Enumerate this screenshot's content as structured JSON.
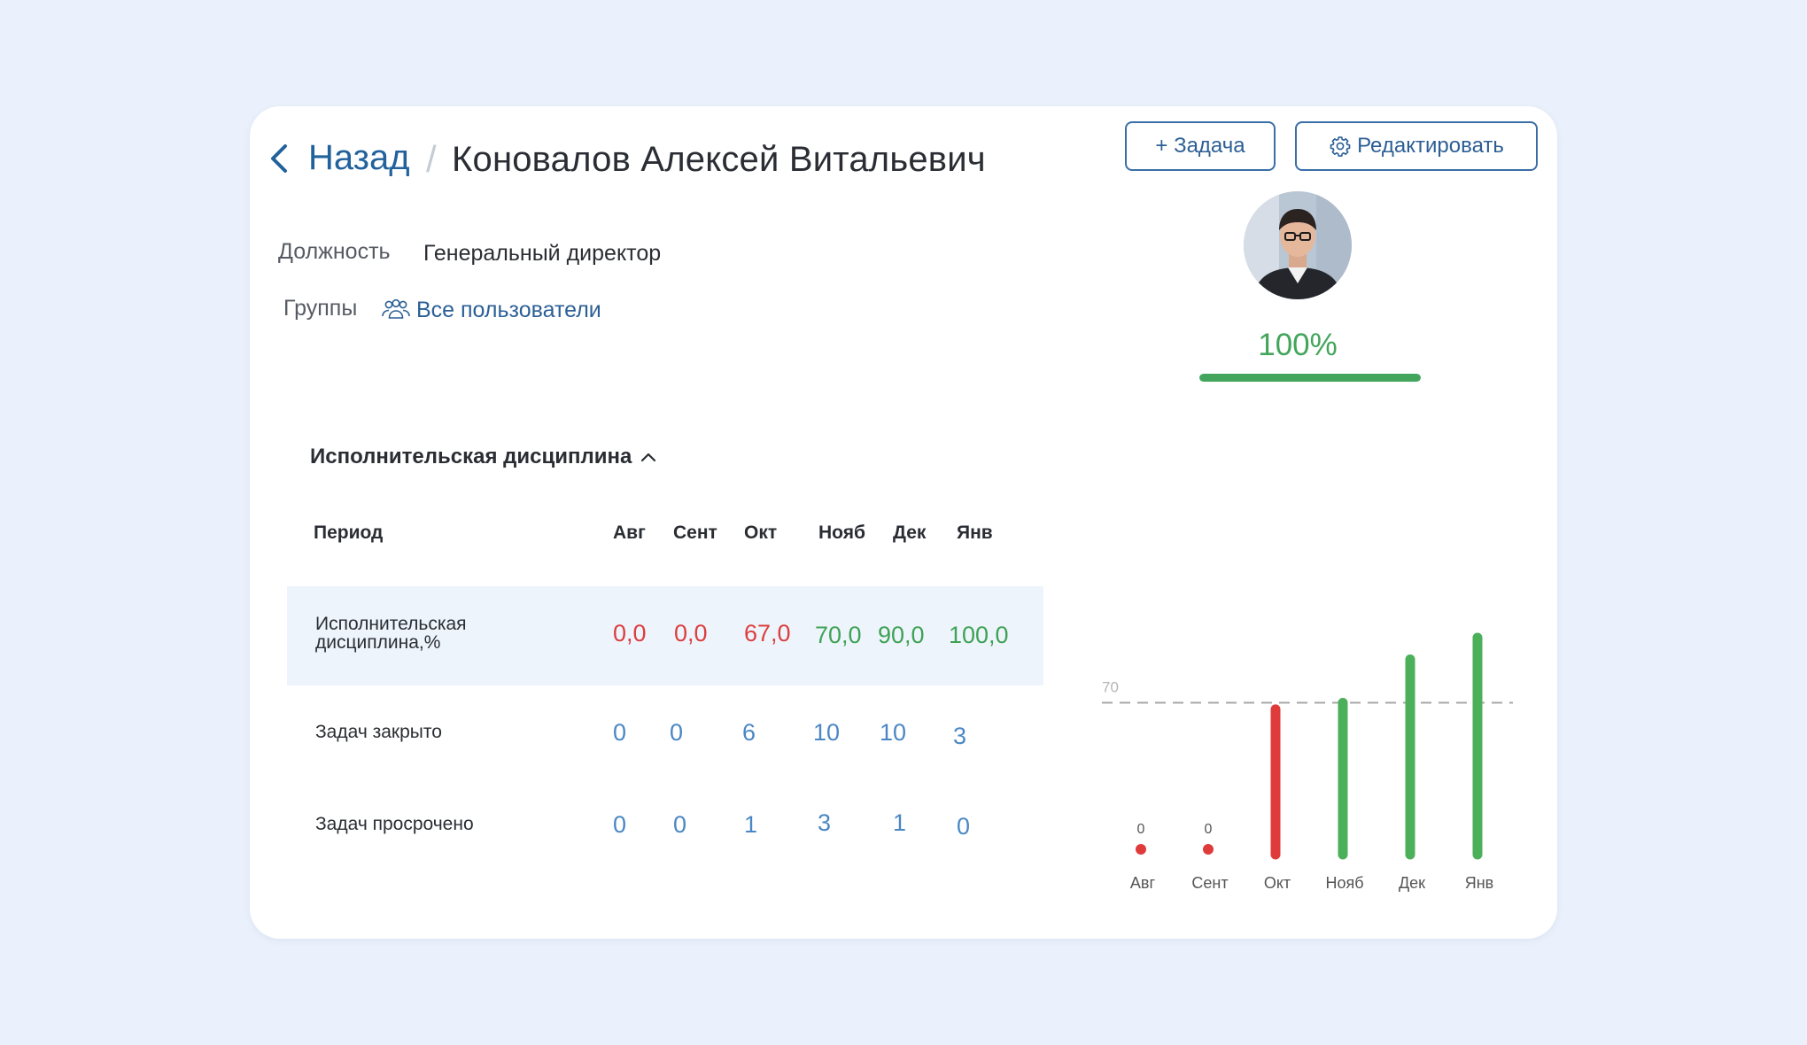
{
  "header": {
    "back_label": "Назад",
    "separator": "/",
    "person_name": "Коновалов Алексей Витальевич"
  },
  "actions": {
    "add_task_label": "+ Задача",
    "edit_label": "Редактировать"
  },
  "profile": {
    "position_label": "Должность",
    "position_value": "Генеральный директор",
    "groups_label": "Группы",
    "groups_value": "Все пользователи",
    "discipline_percent_text": "100%",
    "discipline_progress": 1.0
  },
  "section": {
    "title": "Исполнительская дисциплина"
  },
  "table": {
    "period_header": "Период",
    "months": [
      "Авг",
      "Сент",
      "Окт",
      "Нояб",
      "Дек",
      "Янв"
    ],
    "rows": [
      {
        "label_line1": "Исполнительская",
        "label_line2": "дисциплина,%",
        "values": [
          "0,0",
          "0,0",
          "67,0",
          "70,0",
          "90,0",
          "100,0"
        ],
        "statuses": [
          "bad",
          "bad",
          "bad",
          "good",
          "good",
          "good"
        ]
      },
      {
        "label": "Задач закрыто",
        "values": [
          "0",
          "0",
          "6",
          "10",
          "10",
          "3"
        ]
      },
      {
        "label": "Задач просрочено",
        "values": [
          "0",
          "0",
          "1",
          "3",
          "1",
          "0"
        ]
      }
    ]
  },
  "chart_data": {
    "type": "bar",
    "categories": [
      "Авг",
      "Сент",
      "Окт",
      "Нояб",
      "Дек",
      "Янв"
    ],
    "values": [
      0,
      0,
      67,
      70,
      90,
      100
    ],
    "data_labels": [
      "0",
      "0",
      "",
      "",
      "",
      ""
    ],
    "threshold": 70,
    "threshold_label": "70",
    "ylim": [
      0,
      100
    ],
    "colors": {
      "below_threshold": "#e03b3b",
      "at_or_above_threshold": "#4caf5a",
      "threshold_line": "#a8a8a8"
    }
  },
  "colors": {
    "accent": "#22629c",
    "success": "#43a55c",
    "danger": "#dc3f3f",
    "link": "#2c5f95",
    "page_background": "#eaf1fc"
  }
}
